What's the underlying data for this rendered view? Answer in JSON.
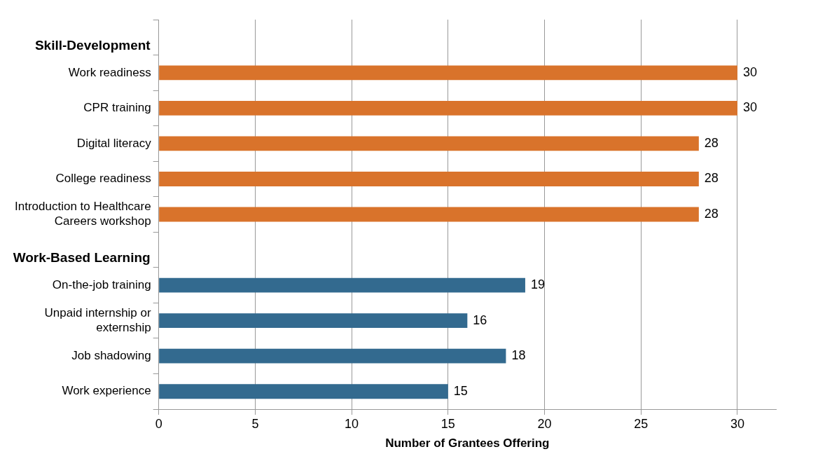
{
  "chart_data": {
    "type": "bar",
    "orientation": "horizontal",
    "xlabel": "Number of Grantees Offering",
    "categories": [
      null,
      "Work readiness",
      "CPR training",
      "Digital literacy",
      "College readiness",
      "Introduction to Healthcare Careers workshop",
      null,
      "On-the-job training",
      "Unpaid internship or externship",
      "Job shadowing",
      "Work experience"
    ],
    "series": [
      {
        "name": "Skill-Development",
        "color": "#d9732b",
        "values": [
          null,
          30,
          30,
          28,
          28,
          28,
          null,
          null,
          null,
          null,
          null
        ]
      },
      {
        "name": "Work-Based Learning",
        "color": "#336a8f",
        "values": [
          null,
          null,
          null,
          null,
          null,
          null,
          null,
          19,
          16,
          18,
          15
        ]
      }
    ],
    "xlim": [
      0,
      32
    ],
    "xticks": [
      0,
      5,
      10,
      15,
      20,
      25,
      30
    ],
    "grid": "x",
    "data_labels": true,
    "legend": false
  }
}
